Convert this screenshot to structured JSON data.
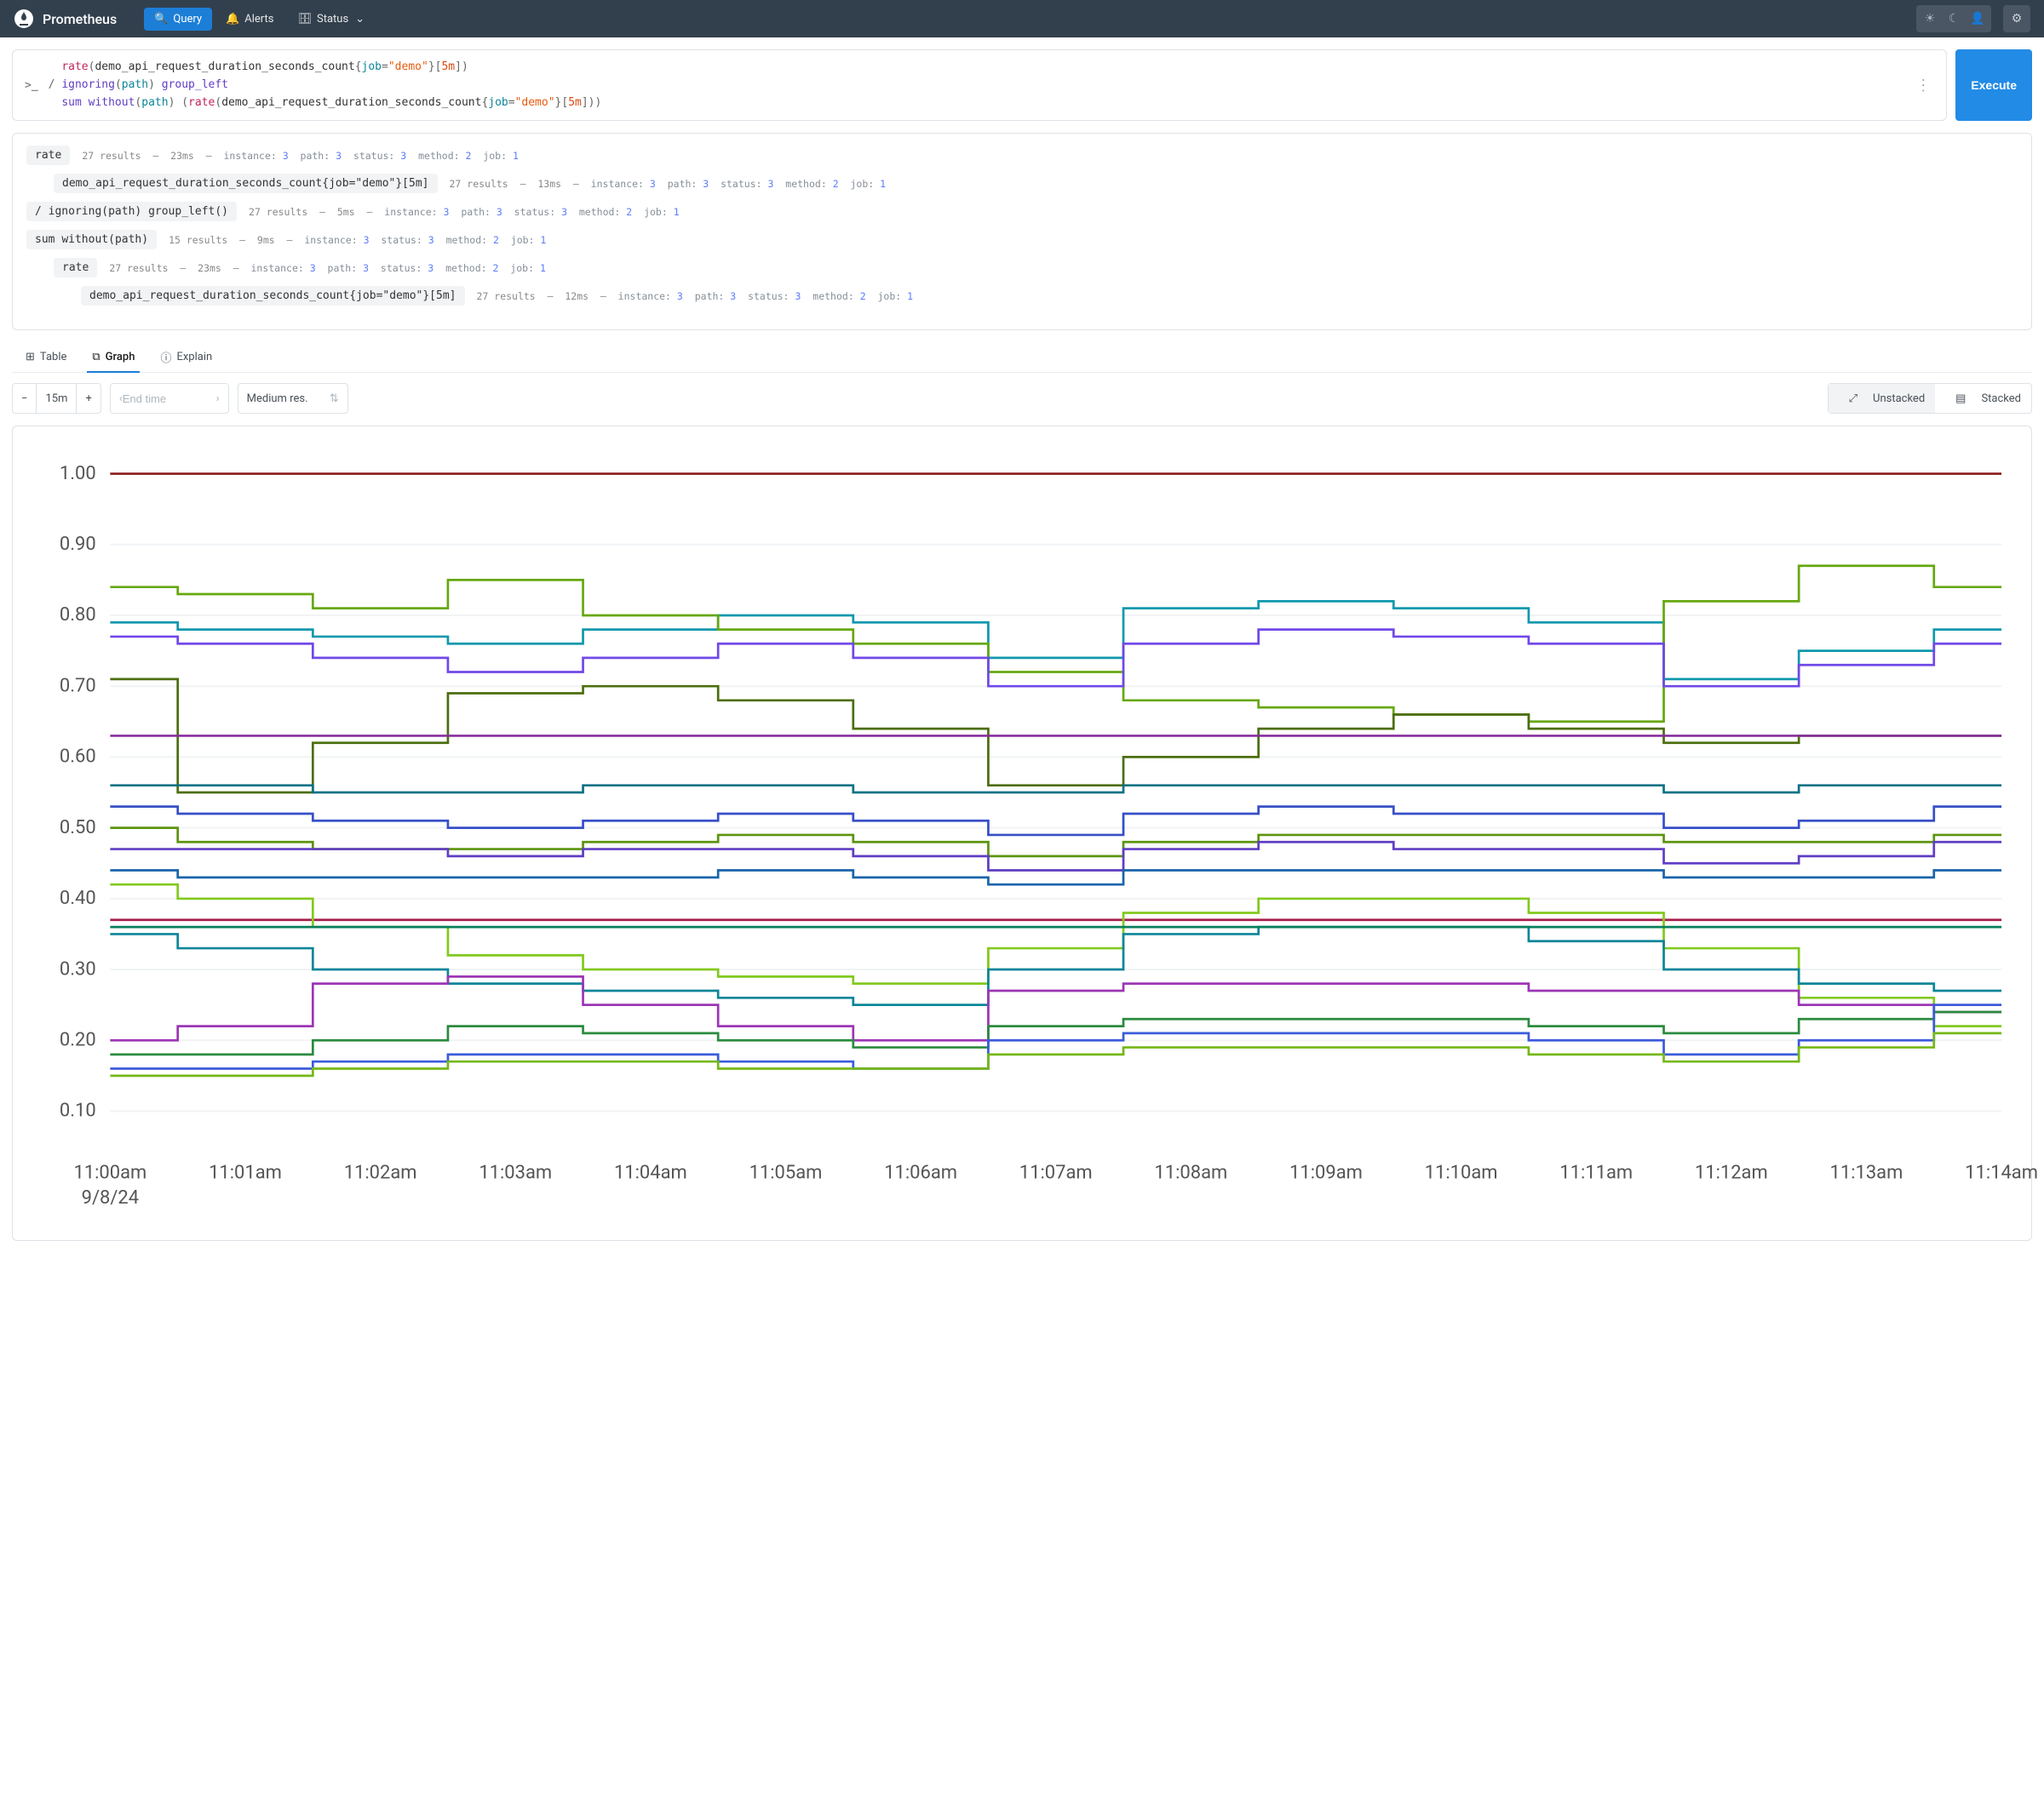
{
  "nav": {
    "brand": "Prometheus",
    "items": [
      {
        "label": "Query",
        "icon": "search",
        "active": true
      },
      {
        "label": "Alerts",
        "icon": "bell",
        "active": false
      },
      {
        "label": "Status",
        "icon": "server",
        "active": false,
        "dropdown": true
      }
    ]
  },
  "query": {
    "execute_label": "Execute",
    "lines": [
      {
        "tokens": [
          [
            "sp",
            "  "
          ],
          [
            "fn",
            "rate"
          ],
          [
            "op",
            "("
          ],
          [
            "id",
            "demo_api_request_duration_seconds_count"
          ],
          [
            "op",
            "{"
          ],
          [
            "lbl",
            "job"
          ],
          [
            "op",
            "="
          ],
          [
            "str",
            "\"demo\""
          ],
          [
            "op",
            "}["
          ],
          [
            "dur",
            "5m"
          ],
          [
            "op",
            "])"
          ]
        ]
      },
      {
        "tokens": [
          [
            "op",
            "/ "
          ],
          [
            "kw",
            "ignoring"
          ],
          [
            "op",
            "("
          ],
          [
            "lbl",
            "path"
          ],
          [
            "op",
            ") "
          ],
          [
            "kw",
            "group_left"
          ]
        ]
      },
      {
        "tokens": [
          [
            "sp",
            "  "
          ],
          [
            "kw",
            "sum"
          ],
          [
            "op",
            " "
          ],
          [
            "kw",
            "without"
          ],
          [
            "op",
            "("
          ],
          [
            "lbl",
            "path"
          ],
          [
            "op",
            ") ("
          ],
          [
            "fn",
            "rate"
          ],
          [
            "op",
            "("
          ],
          [
            "id",
            "demo_api_request_duration_seconds_count"
          ],
          [
            "op",
            "{"
          ],
          [
            "lbl",
            "job"
          ],
          [
            "op",
            "="
          ],
          [
            "str",
            "\"demo\""
          ],
          [
            "op",
            "}["
          ],
          [
            "dur",
            "5m"
          ],
          [
            "op",
            "]))"
          ]
        ]
      }
    ]
  },
  "explain": {
    "rows": [
      {
        "indent": 0,
        "node": [
          [
            "fn",
            "rate"
          ]
        ],
        "results": 27,
        "time": "23ms",
        "labels": {
          "instance": 3,
          "path": 3,
          "status": 3,
          "method": 2,
          "job": 1
        }
      },
      {
        "indent": 1,
        "node": [
          [
            "id",
            "demo_api_request_duration_seconds_count"
          ],
          [
            "op",
            "{"
          ],
          [
            "lbl",
            "job"
          ],
          [
            "op",
            "="
          ],
          [
            "str",
            "\"demo\""
          ],
          [
            "op",
            "}["
          ],
          [
            "dur",
            "5m"
          ],
          [
            "op",
            "]"
          ]
        ],
        "results": 27,
        "time": "13ms",
        "labels": {
          "instance": 3,
          "path": 3,
          "status": 3,
          "method": 2,
          "job": 1
        }
      },
      {
        "indent": 0,
        "node": [
          [
            "op",
            "/ "
          ],
          [
            "kw",
            "ignoring"
          ],
          [
            "op",
            "("
          ],
          [
            "lbl",
            "path"
          ],
          [
            "op",
            ") "
          ],
          [
            "kw",
            "group_left"
          ],
          [
            "op",
            "()"
          ]
        ],
        "results": 27,
        "time": "5ms",
        "labels": {
          "instance": 3,
          "path": 3,
          "status": 3,
          "method": 2,
          "job": 1
        }
      },
      {
        "indent": 0,
        "node": [
          [
            "kw",
            "sum"
          ],
          [
            "op",
            " "
          ],
          [
            "kw",
            "without"
          ],
          [
            "op",
            "("
          ],
          [
            "lbl",
            "path"
          ],
          [
            "op",
            ")"
          ]
        ],
        "results": 15,
        "time": "9ms",
        "labels": {
          "instance": 3,
          "status": 3,
          "method": 2,
          "job": 1
        }
      },
      {
        "indent": 1,
        "node": [
          [
            "fn",
            "rate"
          ]
        ],
        "results": 27,
        "time": "23ms",
        "labels": {
          "instance": 3,
          "path": 3,
          "status": 3,
          "method": 2,
          "job": 1
        }
      },
      {
        "indent": 2,
        "node": [
          [
            "id",
            "demo_api_request_duration_seconds_count"
          ],
          [
            "op",
            "{"
          ],
          [
            "lbl",
            "job"
          ],
          [
            "op",
            "="
          ],
          [
            "str",
            "\"demo\""
          ],
          [
            "op",
            "}["
          ],
          [
            "dur",
            "5m"
          ],
          [
            "op",
            "]"
          ]
        ],
        "results": 27,
        "time": "12ms",
        "labels": {
          "instance": 3,
          "path": 3,
          "status": 3,
          "method": 2,
          "job": 1
        }
      }
    ]
  },
  "tabs": [
    {
      "label": "Table",
      "icon": "table",
      "active": false
    },
    {
      "label": "Graph",
      "icon": "chart",
      "active": true
    },
    {
      "label": "Explain",
      "icon": "info",
      "active": false
    }
  ],
  "controls": {
    "range": "15m",
    "endtime_placeholder": "End time",
    "resolution": "Medium res.",
    "stack_options": [
      "Unstacked",
      "Stacked"
    ],
    "stack_active": "Unstacked"
  },
  "chart": {
    "type": "line",
    "ylim": [
      0.05,
      1.02
    ],
    "yticks": [
      0.1,
      0.2,
      0.3,
      0.4,
      0.5,
      0.6,
      0.7,
      0.8,
      0.9,
      1.0
    ],
    "xlabels": [
      "11:00am",
      "11:01am",
      "11:02am",
      "11:03am",
      "11:04am",
      "11:05am",
      "11:06am",
      "11:07am",
      "11:08am",
      "11:09am",
      "11:10am",
      "11:11am",
      "11:12am",
      "11:13am",
      "11:14am"
    ],
    "date_label": "9/8/24",
    "background": "#ffffff",
    "grid_color": "#f1f3f5",
    "axis_color": "#999",
    "line_width": 1.3,
    "series": [
      {
        "color": "#8b1a1a",
        "vals": [
          1.0,
          1.0,
          1.0,
          1.0,
          1.0,
          1.0,
          1.0,
          1.0,
          1.0,
          1.0,
          1.0,
          1.0,
          1.0,
          1.0,
          1.0
        ]
      },
      {
        "color": "#1098ad",
        "vals": [
          0.79,
          0.78,
          0.77,
          0.76,
          0.78,
          0.8,
          0.79,
          0.74,
          0.81,
          0.82,
          0.81,
          0.79,
          0.71,
          0.75,
          0.78
        ]
      },
      {
        "color": "#66a80f",
        "vals": [
          0.84,
          0.83,
          0.81,
          0.85,
          0.8,
          0.78,
          0.76,
          0.72,
          0.68,
          0.67,
          0.66,
          0.65,
          0.82,
          0.87,
          0.84
        ]
      },
      {
        "color": "#7048e8",
        "vals": [
          0.77,
          0.76,
          0.74,
          0.72,
          0.74,
          0.76,
          0.74,
          0.7,
          0.76,
          0.78,
          0.77,
          0.76,
          0.7,
          0.73,
          0.76
        ]
      },
      {
        "color": "#4c6e0f",
        "vals": [
          0.71,
          0.55,
          0.62,
          0.69,
          0.7,
          0.68,
          0.64,
          0.56,
          0.6,
          0.64,
          0.66,
          0.64,
          0.62,
          0.63,
          0.63
        ]
      },
      {
        "color": "#862e9c",
        "vals": [
          0.63,
          0.63,
          0.63,
          0.63,
          0.63,
          0.63,
          0.63,
          0.63,
          0.63,
          0.63,
          0.63,
          0.63,
          0.63,
          0.63,
          0.63
        ]
      },
      {
        "color": "#0b7285",
        "vals": [
          0.56,
          0.56,
          0.55,
          0.55,
          0.56,
          0.56,
          0.55,
          0.55,
          0.56,
          0.56,
          0.56,
          0.56,
          0.55,
          0.56,
          0.56
        ]
      },
      {
        "color": "#364fc7",
        "vals": [
          0.53,
          0.52,
          0.51,
          0.5,
          0.51,
          0.52,
          0.51,
          0.49,
          0.52,
          0.53,
          0.52,
          0.52,
          0.5,
          0.51,
          0.53
        ]
      },
      {
        "color": "#5c940d",
        "vals": [
          0.5,
          0.48,
          0.47,
          0.47,
          0.48,
          0.49,
          0.48,
          0.46,
          0.48,
          0.49,
          0.49,
          0.49,
          0.48,
          0.48,
          0.49
        ]
      },
      {
        "color": "#5f3dc4",
        "vals": [
          0.47,
          0.47,
          0.47,
          0.46,
          0.47,
          0.47,
          0.46,
          0.44,
          0.47,
          0.48,
          0.47,
          0.47,
          0.45,
          0.46,
          0.48
        ]
      },
      {
        "color": "#1864ab",
        "vals": [
          0.44,
          0.43,
          0.43,
          0.43,
          0.43,
          0.44,
          0.43,
          0.42,
          0.44,
          0.44,
          0.44,
          0.44,
          0.43,
          0.43,
          0.44
        ]
      },
      {
        "color": "#a61e4d",
        "vals": [
          0.37,
          0.37,
          0.37,
          0.37,
          0.37,
          0.37,
          0.37,
          0.37,
          0.37,
          0.37,
          0.37,
          0.37,
          0.37,
          0.37,
          0.37
        ]
      },
      {
        "color": "#82c91e",
        "vals": [
          0.42,
          0.4,
          0.36,
          0.32,
          0.3,
          0.29,
          0.28,
          0.33,
          0.38,
          0.4,
          0.4,
          0.38,
          0.33,
          0.26,
          0.22
        ]
      },
      {
        "color": "#0c8599",
        "vals": [
          0.35,
          0.33,
          0.3,
          0.28,
          0.27,
          0.26,
          0.25,
          0.3,
          0.35,
          0.36,
          0.36,
          0.34,
          0.3,
          0.28,
          0.27
        ]
      },
      {
        "color": "#087f5b",
        "vals": [
          0.36,
          0.36,
          0.36,
          0.36,
          0.36,
          0.36,
          0.36,
          0.36,
          0.36,
          0.36,
          0.36,
          0.36,
          0.36,
          0.36,
          0.36
        ]
      },
      {
        "color": "#9c36b5",
        "vals": [
          0.2,
          0.22,
          0.28,
          0.29,
          0.25,
          0.22,
          0.2,
          0.27,
          0.28,
          0.28,
          0.28,
          0.27,
          0.27,
          0.25,
          0.24
        ]
      },
      {
        "color": "#2b8a3e",
        "vals": [
          0.18,
          0.18,
          0.2,
          0.22,
          0.21,
          0.2,
          0.19,
          0.22,
          0.23,
          0.23,
          0.23,
          0.22,
          0.21,
          0.23,
          0.24
        ]
      },
      {
        "color": "#3b5bdb",
        "vals": [
          0.16,
          0.16,
          0.17,
          0.18,
          0.18,
          0.17,
          0.16,
          0.2,
          0.21,
          0.21,
          0.21,
          0.2,
          0.18,
          0.2,
          0.25
        ]
      },
      {
        "color": "#74b816",
        "vals": [
          0.15,
          0.15,
          0.16,
          0.17,
          0.17,
          0.16,
          0.16,
          0.18,
          0.19,
          0.19,
          0.19,
          0.18,
          0.17,
          0.19,
          0.21
        ]
      }
    ]
  }
}
